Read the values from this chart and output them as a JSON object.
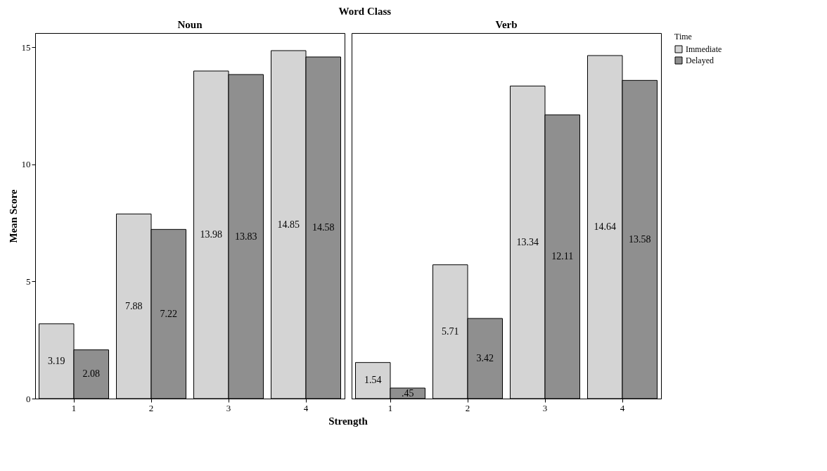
{
  "chart_data": [
    {
      "type": "bar",
      "title": "Noun",
      "annotations": [
        "Word Class"
      ],
      "xlabel": "Strength",
      "ylabel": "Mean Score",
      "legend_title": "Time",
      "legend": "top right",
      "categories": [
        "1",
        "2",
        "3",
        "4"
      ],
      "ylim": [
        0,
        15.6
      ],
      "yticks": [
        0,
        5,
        10,
        15
      ],
      "grid": false,
      "series": [
        {
          "name": "Immediate",
          "color": "#d4d4d4",
          "values": [
            3.19,
            7.88,
            13.98,
            14.85
          ],
          "value_labels": [
            "3.19",
            "7.88",
            "13.98",
            "14.85"
          ]
        },
        {
          "name": "Delayed",
          "color": "#8f8f8f",
          "values": [
            2.08,
            7.22,
            13.83,
            14.58
          ],
          "value_labels": [
            "2.08",
            "7.22",
            "13.83",
            "14.58"
          ]
        }
      ]
    },
    {
      "type": "bar",
      "title": "Verb",
      "categories": [
        "1",
        "2",
        "3",
        "4"
      ],
      "ylim": [
        0,
        15.6
      ],
      "tick_labels": "x",
      "grid": false,
      "legend": "top right",
      "series": [
        {
          "name": "Immediate",
          "color": "#d4d4d4",
          "values": [
            1.54,
            5.71,
            13.34,
            14.64
          ],
          "value_labels": [
            "1.54",
            "5.71",
            "13.34",
            "14.64"
          ]
        },
        {
          "name": "Delayed",
          "color": "#8f8f8f",
          "values": [
            0.45,
            3.42,
            12.11,
            13.58
          ],
          "value_labels": [
            ".45",
            "3.42",
            "12.11",
            "13.58"
          ]
        }
      ]
    }
  ]
}
